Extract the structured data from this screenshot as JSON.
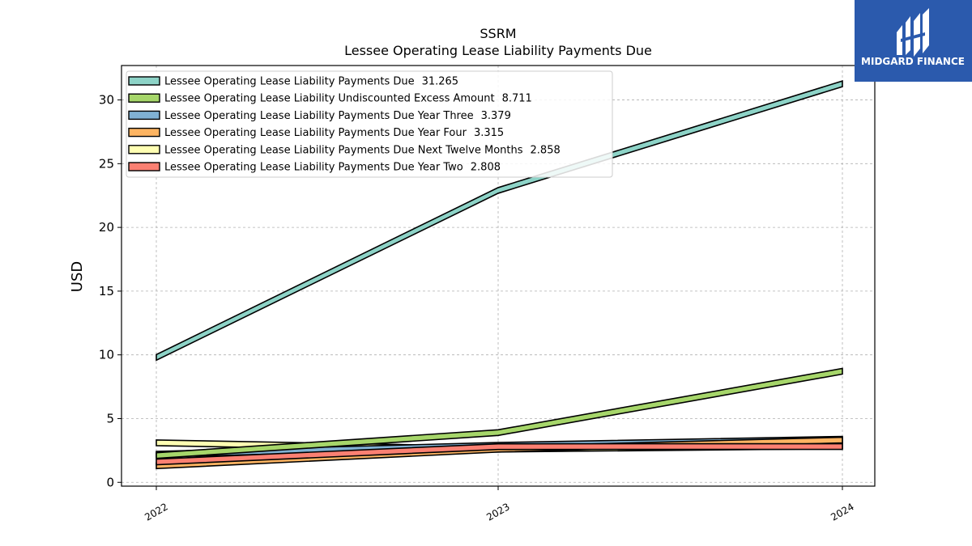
{
  "chart_data": {
    "type": "line",
    "title": "SSRM",
    "subtitle": "Lessee Operating Lease Liability Payments Due",
    "xlabel": "",
    "ylabel": "USD",
    "x": [
      "2022",
      "2023",
      "2024"
    ],
    "ylim": [
      -0.3,
      32.7
    ],
    "yticks": [
      0,
      5,
      10,
      15,
      20,
      25,
      30
    ],
    "grid": true,
    "legend_position": "top-left",
    "series": [
      {
        "name": "Lessee Operating Lease Liability Payments Due",
        "last_value": "31.265",
        "color": "#8dd3c7",
        "values": [
          9.8,
          22.9,
          31.265
        ]
      },
      {
        "name": "Lessee Operating Lease Liability Undiscounted Excess Amount",
        "last_value": "8.711",
        "color": "#a6d66a",
        "values": [
          2.1,
          3.9,
          8.711
        ]
      },
      {
        "name": "Lessee Operating Lease Liability Payments Due Year Three",
        "last_value": "3.379",
        "color": "#80b1d3",
        "values": [
          2.2,
          2.9,
          3.379
        ]
      },
      {
        "name": "Lessee Operating Lease Liability Payments Due Year Four",
        "last_value": "3.315",
        "color": "#fdb462",
        "values": [
          1.3,
          2.6,
          3.315
        ]
      },
      {
        "name": "Lessee Operating Lease Liability Payments Due Next Twelve Months",
        "last_value": "2.858",
        "color": "#ffffb3",
        "values": [
          3.1,
          2.6,
          2.858
        ]
      },
      {
        "name": "Lessee Operating Lease Liability Payments Due Year Two",
        "last_value": "2.808",
        "color": "#fb8072",
        "values": [
          1.6,
          2.8,
          2.808
        ]
      }
    ]
  },
  "logo": {
    "text": "MIDGARD FINANCE",
    "bg_color": "#2b5aad"
  }
}
